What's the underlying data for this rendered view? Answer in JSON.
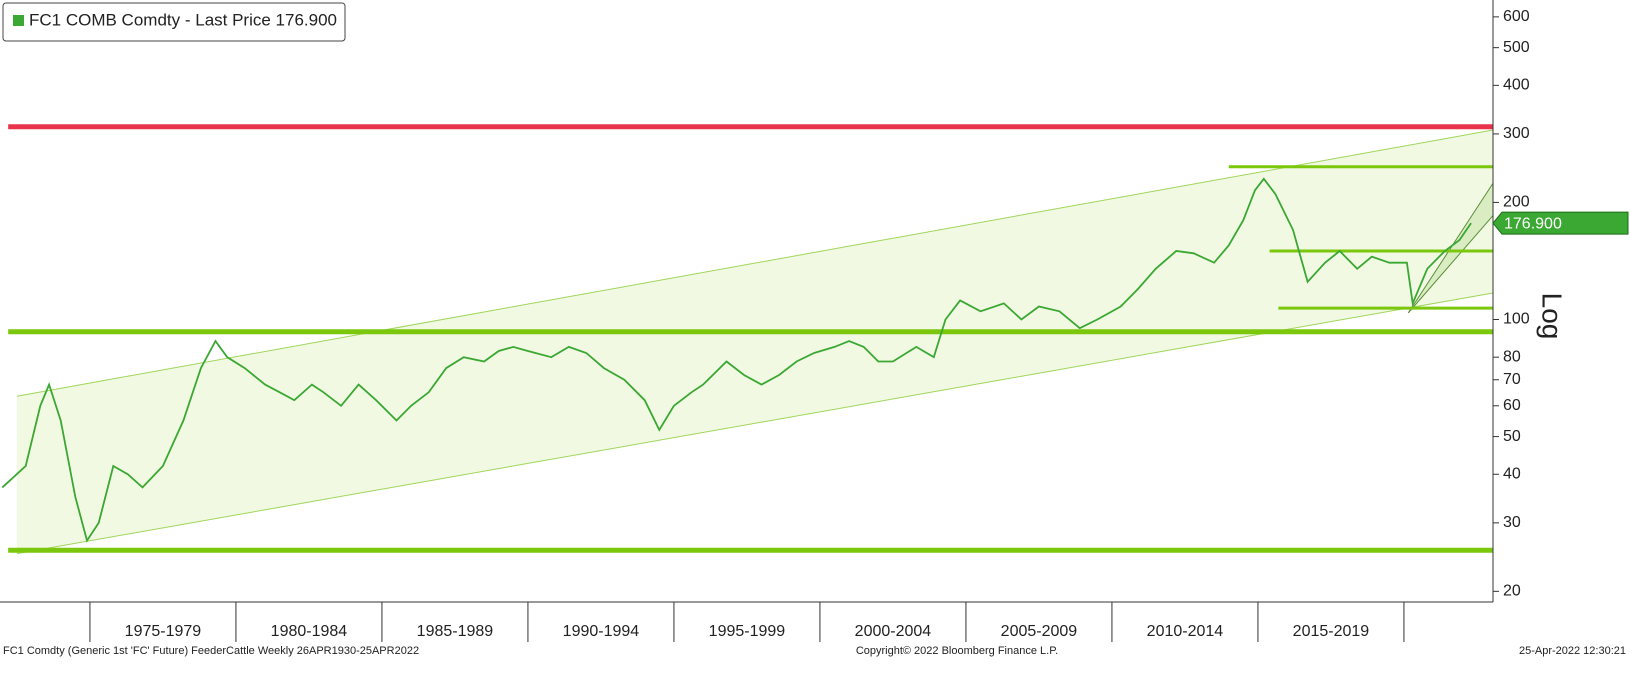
{
  "chart_data": {
    "type": "line",
    "title": "FC1 COMB Comdty - Last Price 176.900",
    "color": "#3aa832",
    "log_scale": true,
    "xlim": [
      1971.92,
      2023.05
    ],
    "ylim": [
      19,
      663
    ],
    "yticks": [
      20,
      30,
      40,
      50,
      60,
      70,
      80,
      100,
      200,
      300,
      400,
      500,
      600
    ],
    "xticks": [
      {
        "value": 1977.5,
        "label": "1975-1979"
      },
      {
        "value": 1982.5,
        "label": "1980-1984"
      },
      {
        "value": 1987.5,
        "label": "1985-1989"
      },
      {
        "value": 1992.5,
        "label": "1990-1994"
      },
      {
        "value": 1997.5,
        "label": "1995-1999"
      },
      {
        "value": 2002.5,
        "label": "2000-2004"
      },
      {
        "value": 2007.5,
        "label": "2005-2009"
      },
      {
        "value": 2012.5,
        "label": "2010-2014"
      },
      {
        "value": 2017.5,
        "label": "2015-2019"
      }
    ],
    "axis_label": "Log",
    "last_price": {
      "value": 176.9,
      "label": "176.900"
    },
    "series": [
      {
        "name": "FC1 COMB Comdty - Last Price 176.900",
        "color": "#3aa832",
        "x": [
          1972.0,
          1972.8,
          1973.3,
          1973.6,
          1974.0,
          1974.5,
          1974.9,
          1975.3,
          1975.8,
          1976.3,
          1976.8,
          1977.5,
          1978.2,
          1978.8,
          1979.3,
          1979.7,
          1980.3,
          1981.0,
          1981.5,
          1982.0,
          1982.6,
          1983.0,
          1983.6,
          1984.2,
          1984.8,
          1985.5,
          1986.0,
          1986.6,
          1987.2,
          1987.8,
          1988.5,
          1989.0,
          1989.5,
          1990.0,
          1990.8,
          1991.4,
          1992.0,
          1992.6,
          1993.3,
          1994.0,
          1994.5,
          1995.0,
          1995.6,
          1996.0,
          1996.8,
          1997.4,
          1998.0,
          1998.6,
          1999.2,
          1999.8,
          2000.5,
          2001.0,
          2001.5,
          2002.0,
          2002.5,
          2003.3,
          2003.9,
          2004.3,
          2004.8,
          2005.5,
          2006.3,
          2006.9,
          2007.5,
          2008.2,
          2008.9,
          2009.5,
          2010.3,
          2010.9,
          2011.5,
          2012.2,
          2012.8,
          2013.5,
          2014.0,
          2014.5,
          2014.9,
          2015.2,
          2015.6,
          2016.2,
          2016.7,
          2017.3,
          2017.8,
          2018.4,
          2018.9,
          2019.5,
          2020.1,
          2020.3,
          2020.8,
          2021.4,
          2021.9,
          2022.3
        ],
        "values": [
          37,
          42,
          60,
          68,
          55,
          35,
          27,
          30,
          42,
          40,
          37,
          42,
          55,
          75,
          88,
          80,
          75,
          68,
          65,
          62,
          68,
          65,
          60,
          68,
          62,
          55,
          60,
          65,
          75,
          80,
          78,
          83,
          85,
          83,
          80,
          85,
          82,
          75,
          70,
          62,
          52,
          60,
          65,
          68,
          78,
          72,
          68,
          72,
          78,
          82,
          85,
          88,
          85,
          78,
          78,
          85,
          80,
          100,
          112,
          105,
          110,
          100,
          108,
          105,
          95,
          100,
          108,
          120,
          135,
          150,
          148,
          140,
          155,
          180,
          215,
          230,
          210,
          170,
          125,
          140,
          150,
          135,
          145,
          140,
          140,
          110,
          135,
          150,
          160,
          177
        ]
      }
    ],
    "hlines": [
      {
        "value": 313,
        "color": "#e8334a",
        "x_from": 1972.2
      },
      {
        "value": 93,
        "color": "#7ac70c",
        "x_from": 1972.2
      },
      {
        "value": 25.5,
        "color": "#7ac70c",
        "x_from": 1972.2
      },
      {
        "value": 247,
        "color": "#7ac70c",
        "x_from": 2014.0
      },
      {
        "value": 150,
        "color": "#7ac70c",
        "x_from": 2015.4
      },
      {
        "value": 107,
        "color": "#7ac70c",
        "x_from": 2015.7
      }
    ],
    "channels": [
      {
        "x": [
          1972.5,
          2023.05
        ],
        "upper": [
          63.5,
          307
        ],
        "lower": [
          25.0,
          117
        ],
        "fill": "#eef7dc",
        "stroke": "#9fd65a"
      },
      {
        "x": [
          2020.15,
          2023.05
        ],
        "upper": [
          104,
          224
        ],
        "lower": [
          104,
          185
        ],
        "fill": "#d3e9b9",
        "stroke": "#5a8f3a"
      }
    ],
    "footer_left": "FC1 Comdty (Generic 1st 'FC' Future) FeederCattle  Weekly 26APR1930-25APR2022",
    "footer_center": "Copyright© 2022 Bloomberg Finance L.P.",
    "footer_right": "25-Apr-2022 12:30:21"
  }
}
